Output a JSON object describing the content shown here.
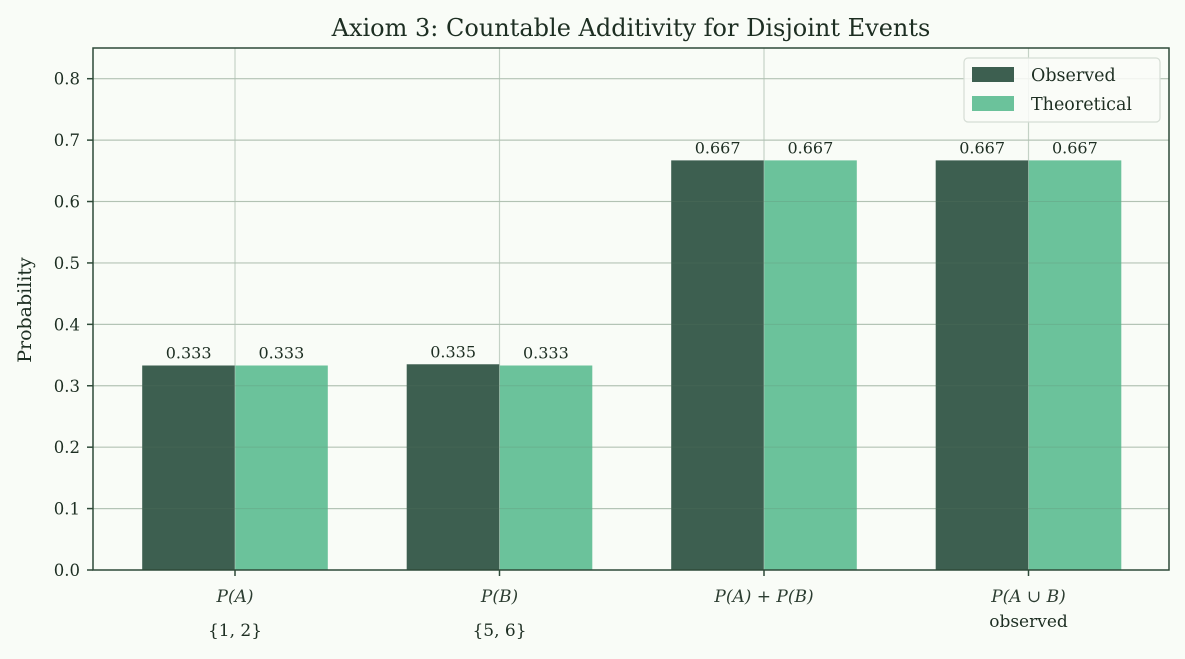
{
  "chart_data": {
    "type": "bar",
    "title": "Axiom 3: Countable Additivity for Disjoint Events",
    "xlabel": "",
    "ylabel": "Probability",
    "ylim": [
      0,
      0.85
    ],
    "yticks": [
      "0.0",
      "0.1",
      "0.2",
      "0.3",
      "0.4",
      "0.5",
      "0.6",
      "0.7",
      "0.8"
    ],
    "grid": true,
    "legend_position": "upper right",
    "categories": [
      {
        "label": "P(A)",
        "sublabel": "{1, 2}"
      },
      {
        "label": "P(B)",
        "sublabel": "{5, 6}"
      },
      {
        "label": "P(A) + P(B)",
        "sublabel": ""
      },
      {
        "label": "P(A ∪ B)",
        "sublabel": "observed"
      }
    ],
    "series": [
      {
        "name": "Observed",
        "color": "#3d5f50",
        "values": [
          0.333,
          0.335,
          0.667,
          0.667
        ],
        "labels": [
          "0.333",
          "0.335",
          "0.667",
          "0.667"
        ]
      },
      {
        "name": "Theoretical",
        "color": "#6bc29b",
        "values": [
          0.333,
          0.333,
          0.667,
          0.667
        ],
        "labels": [
          "0.333",
          "0.333",
          "0.667",
          "0.667"
        ]
      }
    ]
  },
  "colors": {
    "background": "#f9fcf7",
    "axis": "#2e4a38",
    "grid": "#c9d6c9",
    "text": "#1d2e22"
  }
}
